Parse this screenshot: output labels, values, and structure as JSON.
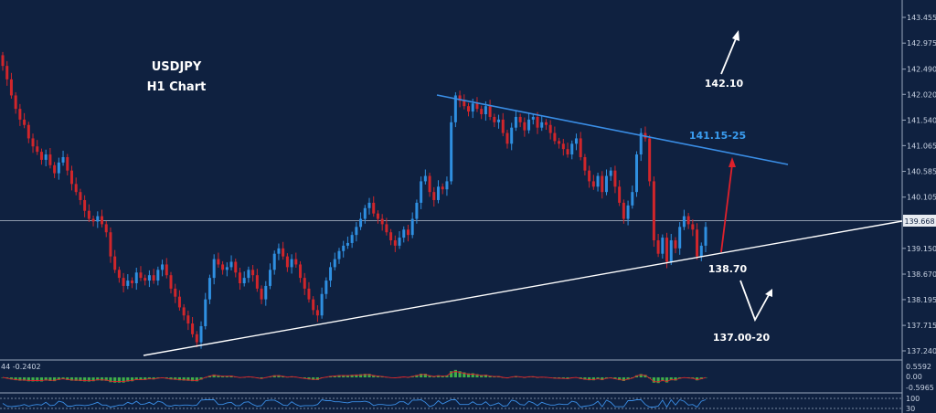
{
  "chart_data": {
    "type": "candlestick",
    "title": "USDJPY",
    "subtitle": "H1 Chart",
    "current_price_label": "139.668",
    "y_ticks": [
      "143.455",
      "142.975",
      "142.490",
      "142.020",
      "141.540",
      "141.065",
      "140.585",
      "140.105",
      "139.150",
      "138.670",
      "138.195",
      "137.715",
      "137.240"
    ],
    "ylim": [
      137.0,
      143.6
    ],
    "annotations": {
      "target_high": "142.10",
      "resistance": "141.15-25",
      "support": "138.70",
      "target_low": "137.00-20"
    },
    "colors": {
      "background": "#0f2140",
      "bull": "#2f8fe0",
      "bear": "#d0262b",
      "resistance_line": "#3a8ee6",
      "support_line": "#ffffff",
      "arrow_up_red": "#e0212b",
      "histogram": "#3fae49",
      "signal": "#e0212b"
    },
    "lower_panels": {
      "indicator_label": "44 -0.2402",
      "macd_ticks": [
        "0.5592",
        "0.00",
        "-0.5965"
      ],
      "rsi_ticks": [
        "100",
        "30"
      ]
    },
    "closes": [
      142.55,
      142.3,
      142.0,
      141.75,
      141.55,
      141.45,
      141.2,
      141.05,
      140.95,
      140.8,
      140.9,
      140.7,
      140.55,
      140.75,
      140.85,
      140.6,
      140.35,
      140.2,
      140.05,
      139.85,
      139.7,
      139.65,
      139.75,
      139.6,
      139.45,
      139.0,
      138.75,
      138.6,
      138.45,
      138.55,
      138.5,
      138.7,
      138.6,
      138.55,
      138.65,
      138.55,
      138.75,
      138.85,
      138.65,
      138.4,
      138.25,
      138.05,
      137.9,
      137.75,
      137.55,
      137.4,
      137.7,
      138.2,
      138.6,
      138.95,
      138.85,
      138.75,
      138.8,
      138.9,
      138.7,
      138.5,
      138.6,
      138.75,
      138.65,
      138.4,
      138.2,
      138.45,
      138.75,
      139.05,
      139.15,
      139.0,
      138.8,
      138.95,
      138.85,
      138.6,
      138.4,
      138.2,
      138.0,
      137.9,
      138.3,
      138.55,
      138.8,
      138.95,
      139.1,
      139.2,
      139.25,
      139.4,
      139.55,
      139.7,
      139.9,
      140.0,
      139.8,
      139.7,
      139.6,
      139.45,
      139.3,
      139.2,
      139.35,
      139.5,
      139.4,
      139.7,
      140.0,
      140.4,
      140.5,
      140.2,
      140.05,
      140.3,
      140.25,
      140.4,
      141.5,
      142.0,
      141.9,
      141.8,
      141.7,
      141.85,
      141.75,
      141.65,
      141.8,
      141.6,
      141.5,
      141.55,
      141.3,
      141.1,
      141.4,
      141.6,
      141.5,
      141.35,
      141.55,
      141.6,
      141.4,
      141.5,
      141.45,
      141.3,
      141.15,
      141.1,
      141.0,
      140.9,
      141.1,
      141.2,
      140.85,
      140.6,
      140.4,
      140.3,
      140.5,
      140.2,
      140.5,
      140.6,
      140.3,
      140.0,
      139.7,
      139.95,
      140.2,
      140.9,
      141.3,
      141.2,
      140.4,
      139.3,
      139.05,
      139.35,
      138.9,
      139.3,
      139.15,
      139.55,
      139.75,
      139.6,
      139.5,
      139.0,
      139.2,
      139.55
    ]
  }
}
